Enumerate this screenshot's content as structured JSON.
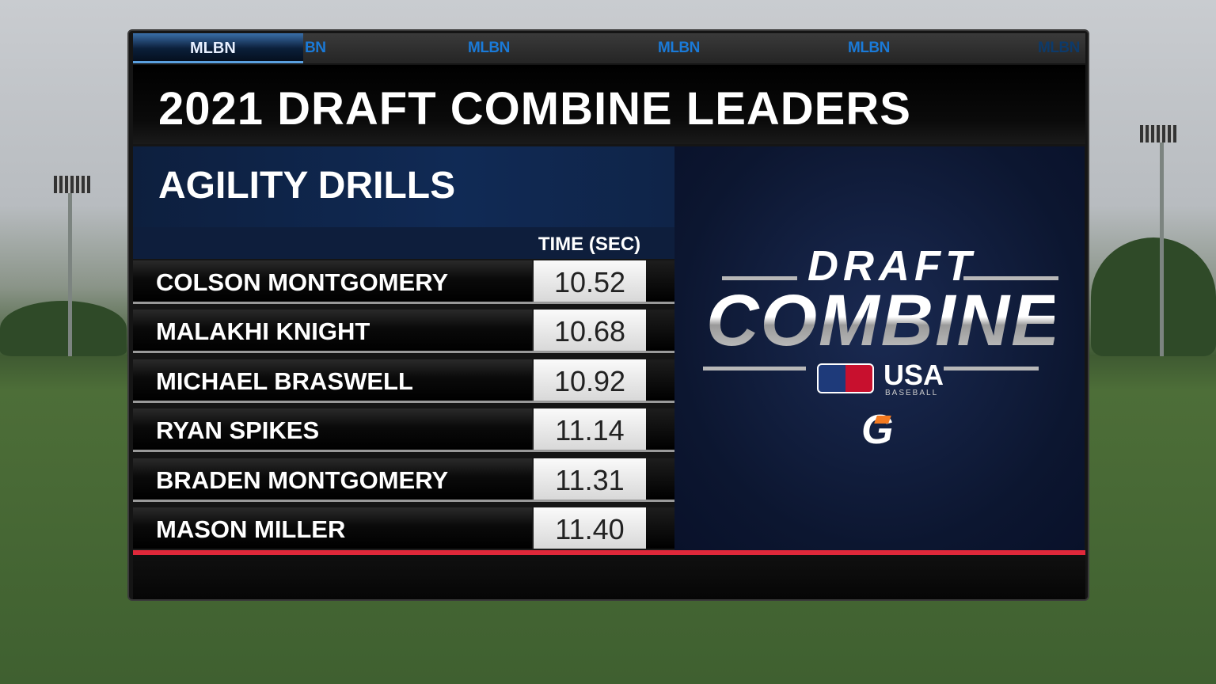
{
  "ticker": {
    "active": "MLBN",
    "items": [
      "BN",
      "MLBN",
      "MLBN",
      "MLBN",
      "MLBN"
    ],
    "accent": "#1a7ad8"
  },
  "title": "2021 DRAFT COMBINE LEADERS",
  "section": {
    "title": "AGILITY DRILLS",
    "column_header": "TIME (SEC)"
  },
  "rows": [
    {
      "name": "COLSON MONTGOMERY",
      "time": "10.52"
    },
    {
      "name": "MALAKHI KNIGHT",
      "time": "10.68"
    },
    {
      "name": "MICHAEL BRASWELL",
      "time": "10.92"
    },
    {
      "name": "RYAN SPIKES",
      "time": "11.14"
    },
    {
      "name": "BRADEN MONTGOMERY",
      "time": "11.31"
    },
    {
      "name": "MASON MILLER",
      "time": "11.40"
    }
  ],
  "logo": {
    "line1": "DRAFT",
    "line2": "COMBINE",
    "partner": "USA",
    "partner_sub": "BASEBALL",
    "sponsor": "G"
  },
  "colors": {
    "accent_red": "#e0283a",
    "navy": "#0e1e3c"
  }
}
